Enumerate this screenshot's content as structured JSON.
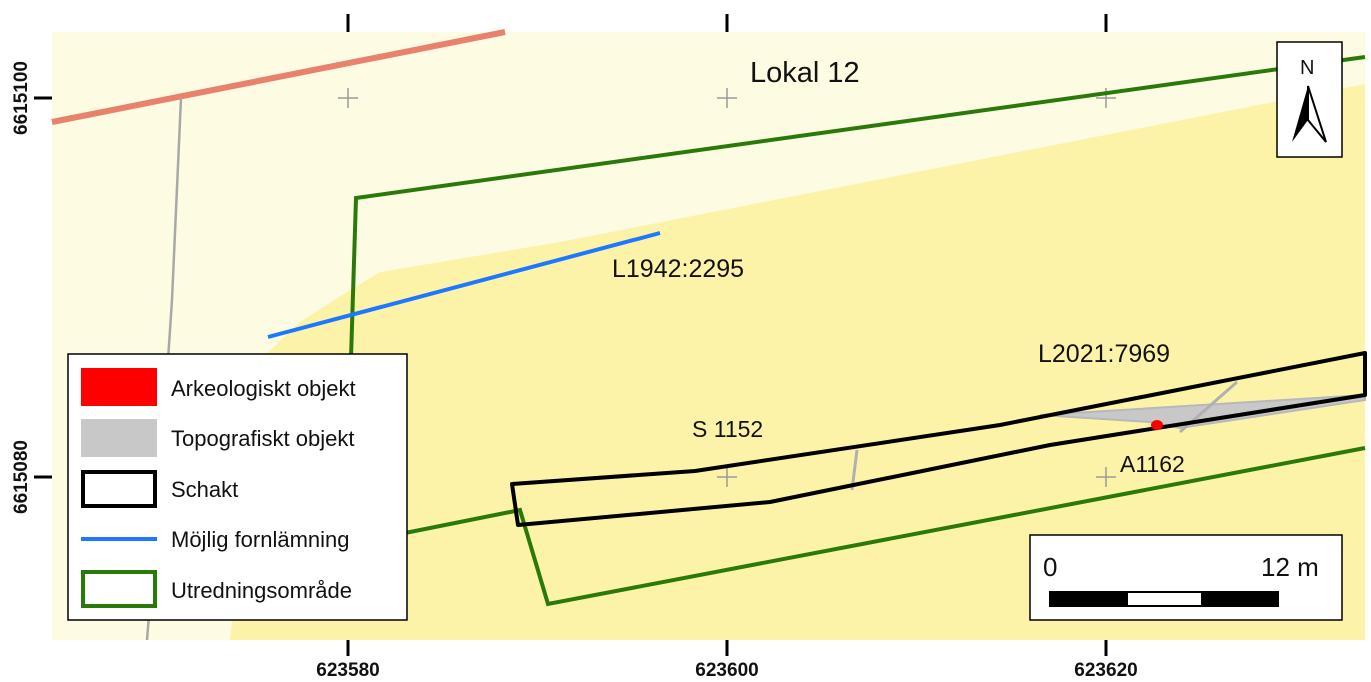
{
  "map": {
    "title": "Lokal 12",
    "north_arrow": {
      "label": "N"
    },
    "axes": {
      "x_ticks": [
        "623580",
        "623600",
        "623620"
      ],
      "y_ticks": [
        "6615100",
        "6615080"
      ]
    },
    "labels": {
      "line_label_1": "L1942:2295",
      "line_label_2": "L2021:7969",
      "trench_label": "S 1152",
      "feature_label": "A1162"
    },
    "scale_bar": {
      "start": "0",
      "end": "12 m"
    },
    "legend": {
      "items": [
        {
          "label": "Arkeologiskt objekt",
          "symbol": "filled-rect",
          "color": "#ff0000"
        },
        {
          "label": "Topografiskt objekt",
          "symbol": "filled-rect",
          "color": "#c8c8c8"
        },
        {
          "label": "Schakt",
          "symbol": "outline-rect",
          "color": "#000000"
        },
        {
          "label": "Möjlig fornlämning",
          "symbol": "line",
          "color": "#1e78ff"
        },
        {
          "label": "Utredningsområde",
          "symbol": "outline-rect",
          "color": "#2a7a0a"
        }
      ]
    },
    "colors": {
      "pale_background": "#fefbe3",
      "yellow_area": "#fdf3a8",
      "road": "#e8826c",
      "gray_line": "#a8a8a8",
      "investigation_area": "#2a7a0a",
      "possible_remain": "#1e78ff",
      "trench": "#000000",
      "archaeological_object": "#ff0000",
      "topographic_object": "#c8c8c8"
    }
  }
}
